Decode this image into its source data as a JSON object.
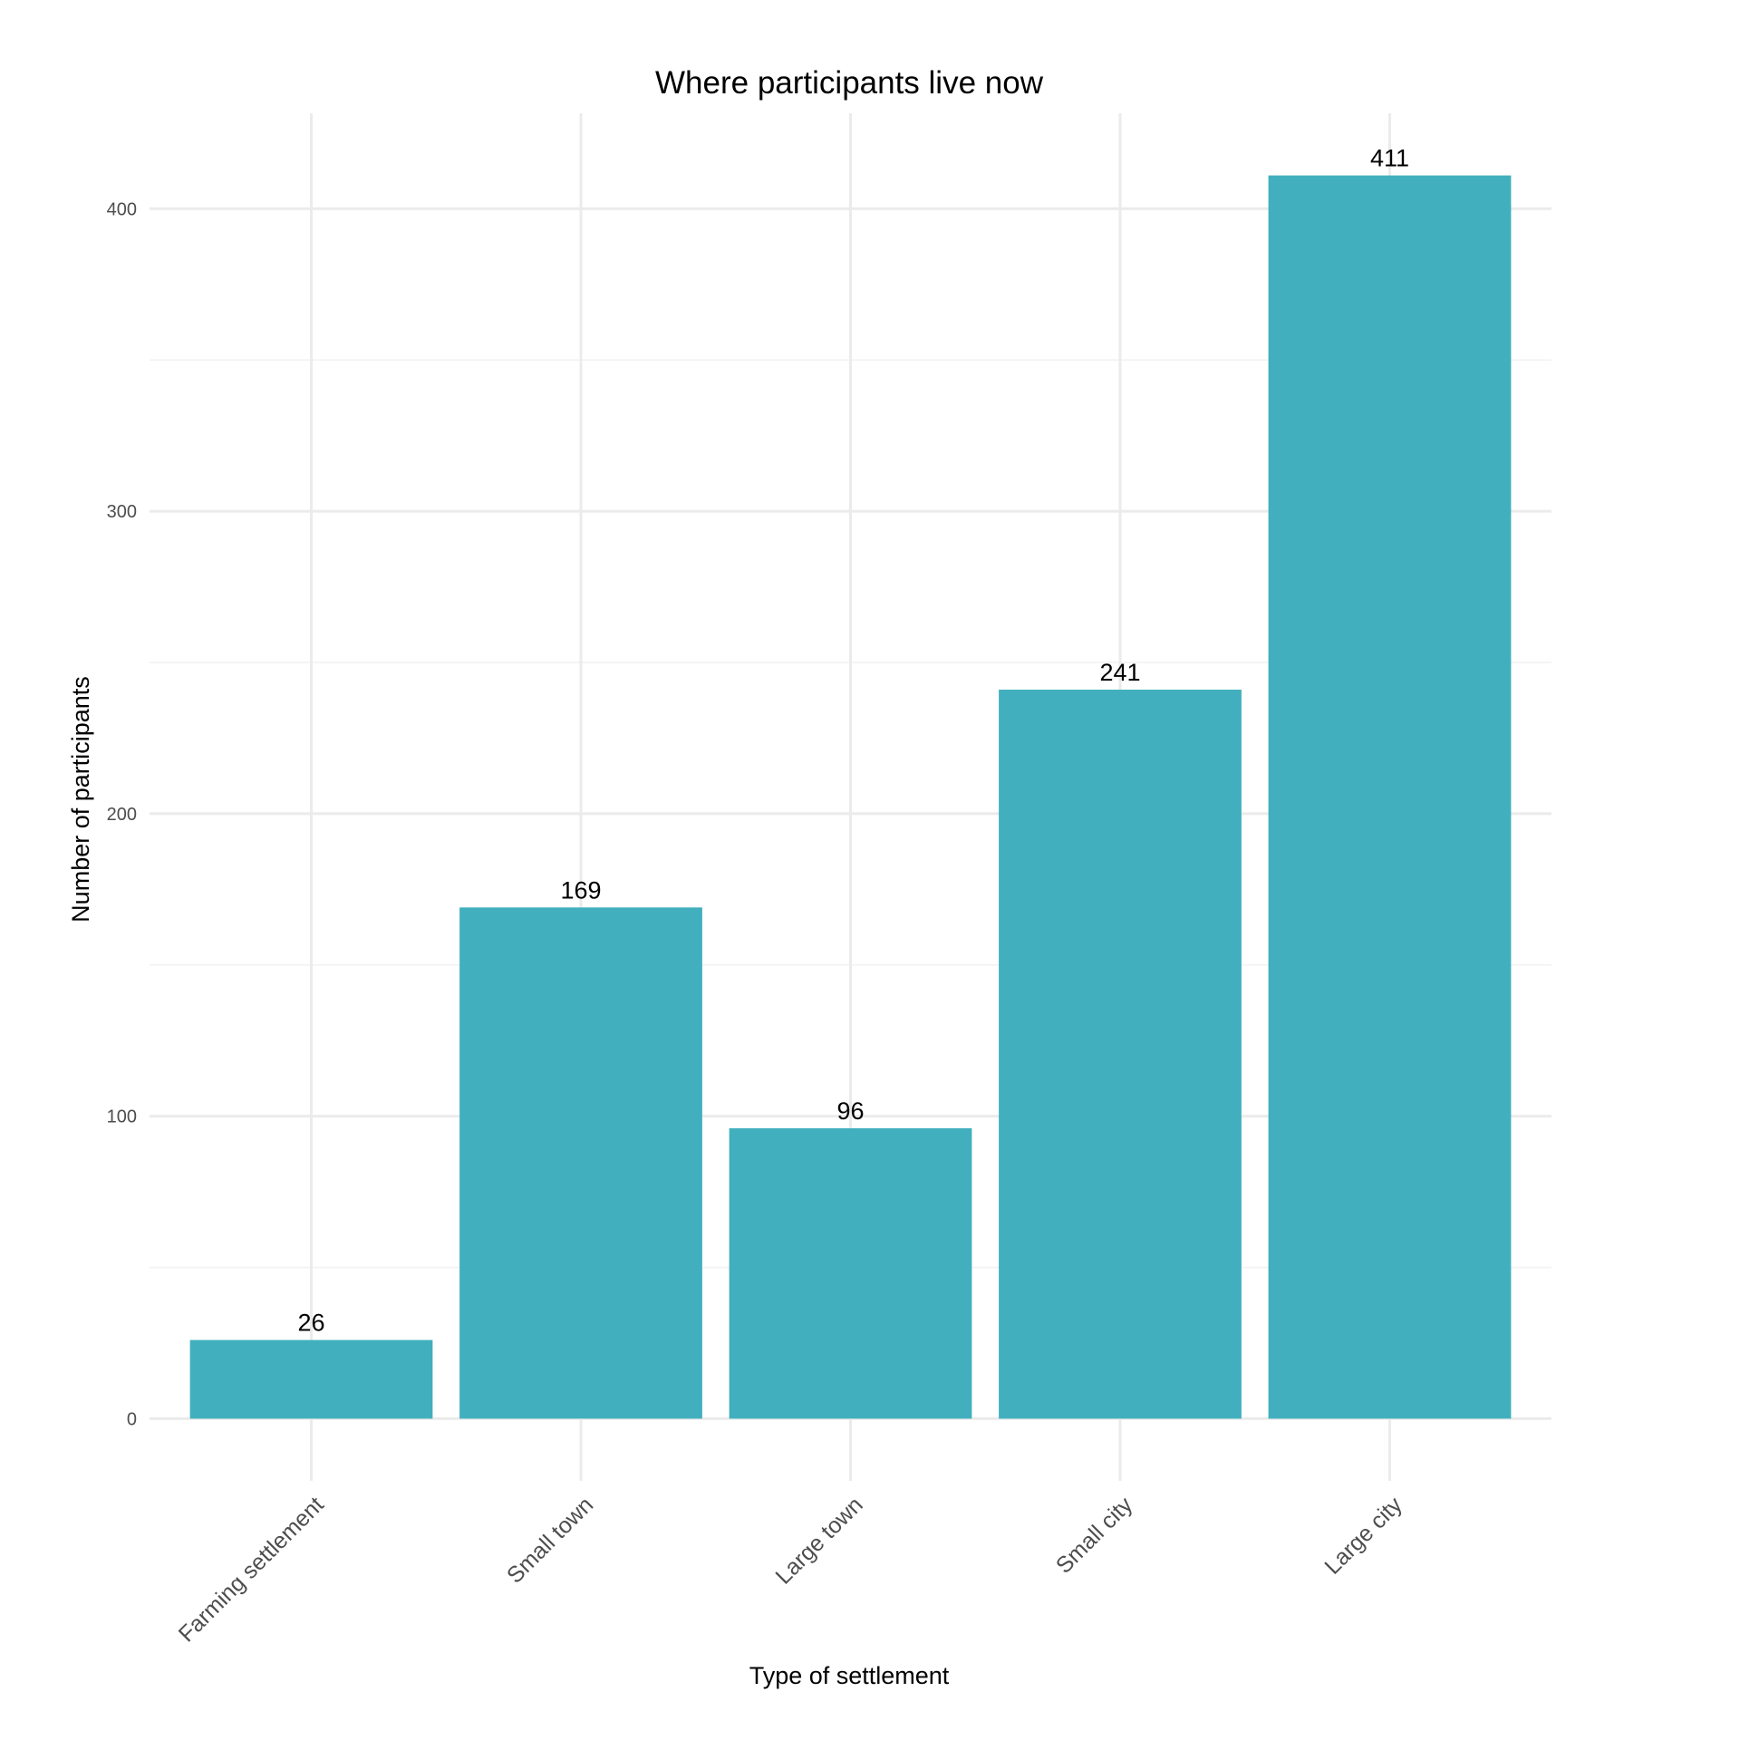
{
  "chart_data": {
    "type": "bar",
    "title": "Where participants live now",
    "xlabel": "Type of settlement",
    "ylabel": "Number of participants",
    "categories": [
      "Farming settlement",
      "Small town",
      "Large town",
      "Small city",
      "Large city"
    ],
    "values": [
      26,
      169,
      96,
      241,
      411
    ],
    "data_labels": [
      "26",
      "169",
      "96",
      "241",
      "411"
    ],
    "yticks": [
      0,
      100,
      200,
      300,
      400
    ],
    "ytick_labels": [
      "0",
      "100",
      "200",
      "300",
      "400"
    ],
    "ylim": [
      -20.55,
      431.55
    ],
    "grid": true,
    "legend": "none",
    "bar_color": "#41AFBE",
    "x_tick_rotation_deg": 45
  }
}
